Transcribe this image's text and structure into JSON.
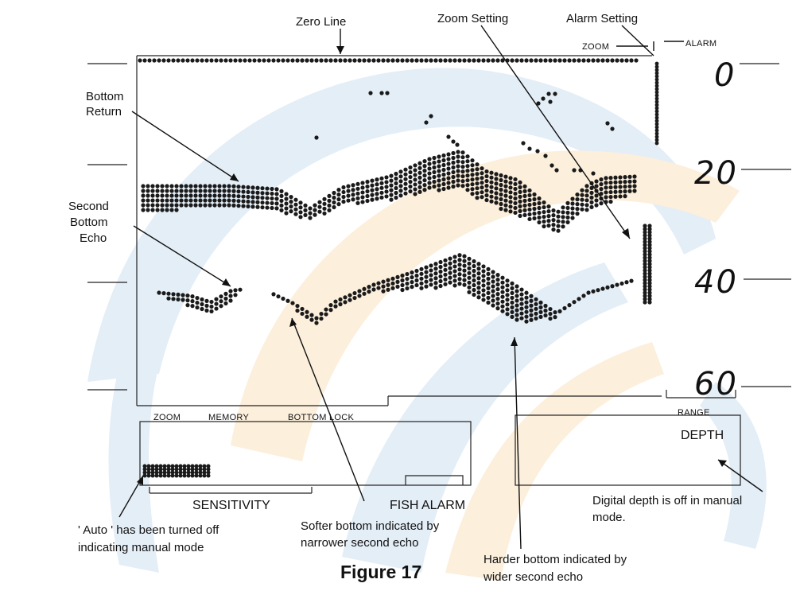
{
  "callouts": {
    "zero_line": "Zero Line",
    "zoom_setting": "Zoom Setting",
    "alarm_setting": "Alarm Setting",
    "bottom_return": [
      "Bottom",
      "Return"
    ],
    "second_bottom_echo": [
      "Second",
      "Bottom",
      "Echo"
    ],
    "auto_off": [
      "' Auto ' has been turned off",
      "indicating manual mode"
    ],
    "softer_bottom": [
      "Softer bottom indicated by",
      "narrower second echo"
    ],
    "harder_bottom": [
      "Harder bottom indicated by",
      "wider second echo"
    ],
    "digital_depth": [
      "Digital depth is off in manual",
      "mode."
    ]
  },
  "display": {
    "top_right": {
      "zoom": "ZOOM",
      "alarm": "ALARM"
    },
    "depth_scale": [
      "0",
      "20",
      "40",
      "60"
    ],
    "bottom_labels": {
      "zoom": "ZOOM",
      "memory": "MEMORY",
      "bottom_lock": "BOTTOM LOCK",
      "range": "RANGE"
    },
    "depth_box": "DEPTH",
    "sensitivity": "SENSITIVITY",
    "fish_alarm": "FISH ALARM"
  },
  "caption": "Figure 17",
  "colors": {
    "ink": "#1a1a1a",
    "watermark_blue": "#dce8f3",
    "watermark_orange": "#fbe9cf"
  }
}
